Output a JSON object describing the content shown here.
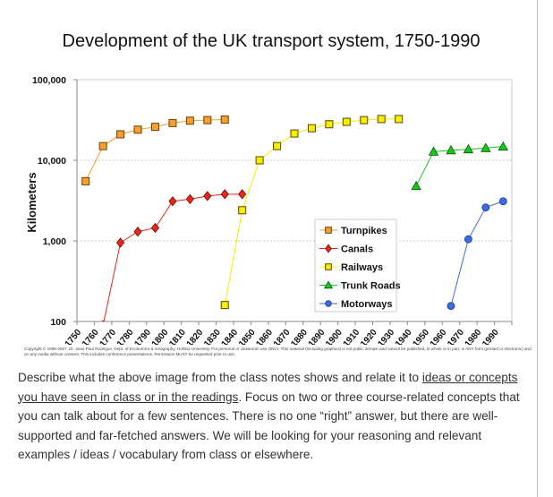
{
  "chart_data": {
    "type": "line",
    "title": "Development of the UK transport system, 1750-1990",
    "xlabel": "",
    "ylabel": "Kilometers",
    "yscale": "log",
    "ylim": [
      100,
      100000
    ],
    "yticks": [
      "100",
      "1,000",
      "10,000",
      "100,000"
    ],
    "ytick_values": [
      100,
      1000,
      10000,
      100000
    ],
    "categories": [
      "1750",
      "1760",
      "1770",
      "1780",
      "1790",
      "1800",
      "1810",
      "1820",
      "1830",
      "1840",
      "1850",
      "1860",
      "1870",
      "1880",
      "1890",
      "1900",
      "1910",
      "1920",
      "1930",
      "1940",
      "1950",
      "1960",
      "1970",
      "1980",
      "1990"
    ],
    "grid": "dotted at 1,000 and 10,000",
    "legend_position": "center-right",
    "series": [
      {
        "name": "Turnpikes",
        "color": "#f7a030",
        "marker": "square",
        "x": [
          1750,
          1760,
          1770,
          1780,
          1790,
          1800,
          1810,
          1820,
          1830
        ],
        "values": [
          5500,
          15000,
          21000,
          24000,
          26000,
          29000,
          31000,
          31500,
          32000
        ]
      },
      {
        "name": "Canals",
        "color": "#e8281a",
        "marker": "diamond",
        "x": [
          1760,
          1770,
          1780,
          1790,
          1800,
          1810,
          1820,
          1830,
          1840
        ],
        "values": [
          90,
          950,
          1300,
          1450,
          3100,
          3300,
          3600,
          3800,
          3800
        ]
      },
      {
        "name": "Railways",
        "color": "#f0f000",
        "marker": "square",
        "x": [
          1830,
          1840,
          1850,
          1860,
          1870,
          1880,
          1890,
          1900,
          1910,
          1920,
          1930
        ],
        "values": [
          160,
          2400,
          10000,
          15000,
          21500,
          25000,
          28000,
          30000,
          31500,
          32500,
          32500
        ]
      },
      {
        "name": "Trunk Roads",
        "color": "#18c818",
        "marker": "triangle",
        "x": [
          1940,
          1950,
          1960,
          1970,
          1980,
          1990
        ],
        "values": [
          4800,
          12800,
          13300,
          13700,
          14200,
          14800
        ]
      },
      {
        "name": "Motorways",
        "color": "#3a6ee0",
        "marker": "circle",
        "x": [
          1960,
          1970,
          1980,
          1990
        ],
        "values": [
          156,
          1050,
          2600,
          3100
        ]
      }
    ]
  },
  "copyright": "Copyright © 1998-2007, Dr. Jean-Paul Rodrigue, Dept. of Economics & Geography, Hofstra University. For personal or classroom use ONLY. This material (including graphics) is not public domain and cannot be published, in whole or in part, in ANY form (printed or electronic) and on any media without consent. This includes conference presentations. Permission MUST be requested prior to use.",
  "prompt": {
    "before": "Describe what the above image from the class notes shows and relate it to ",
    "link": "ideas or concepts you have seen in class or in the readings",
    "after": ".   Focus on two or three course-related concepts that you can talk about for a few sentences.  There is no one “right” answer, but there are well-supported and far-fetched answers.  We will be looking for your reasoning and relevant examples / ideas / vocabulary from class or elsewhere."
  }
}
